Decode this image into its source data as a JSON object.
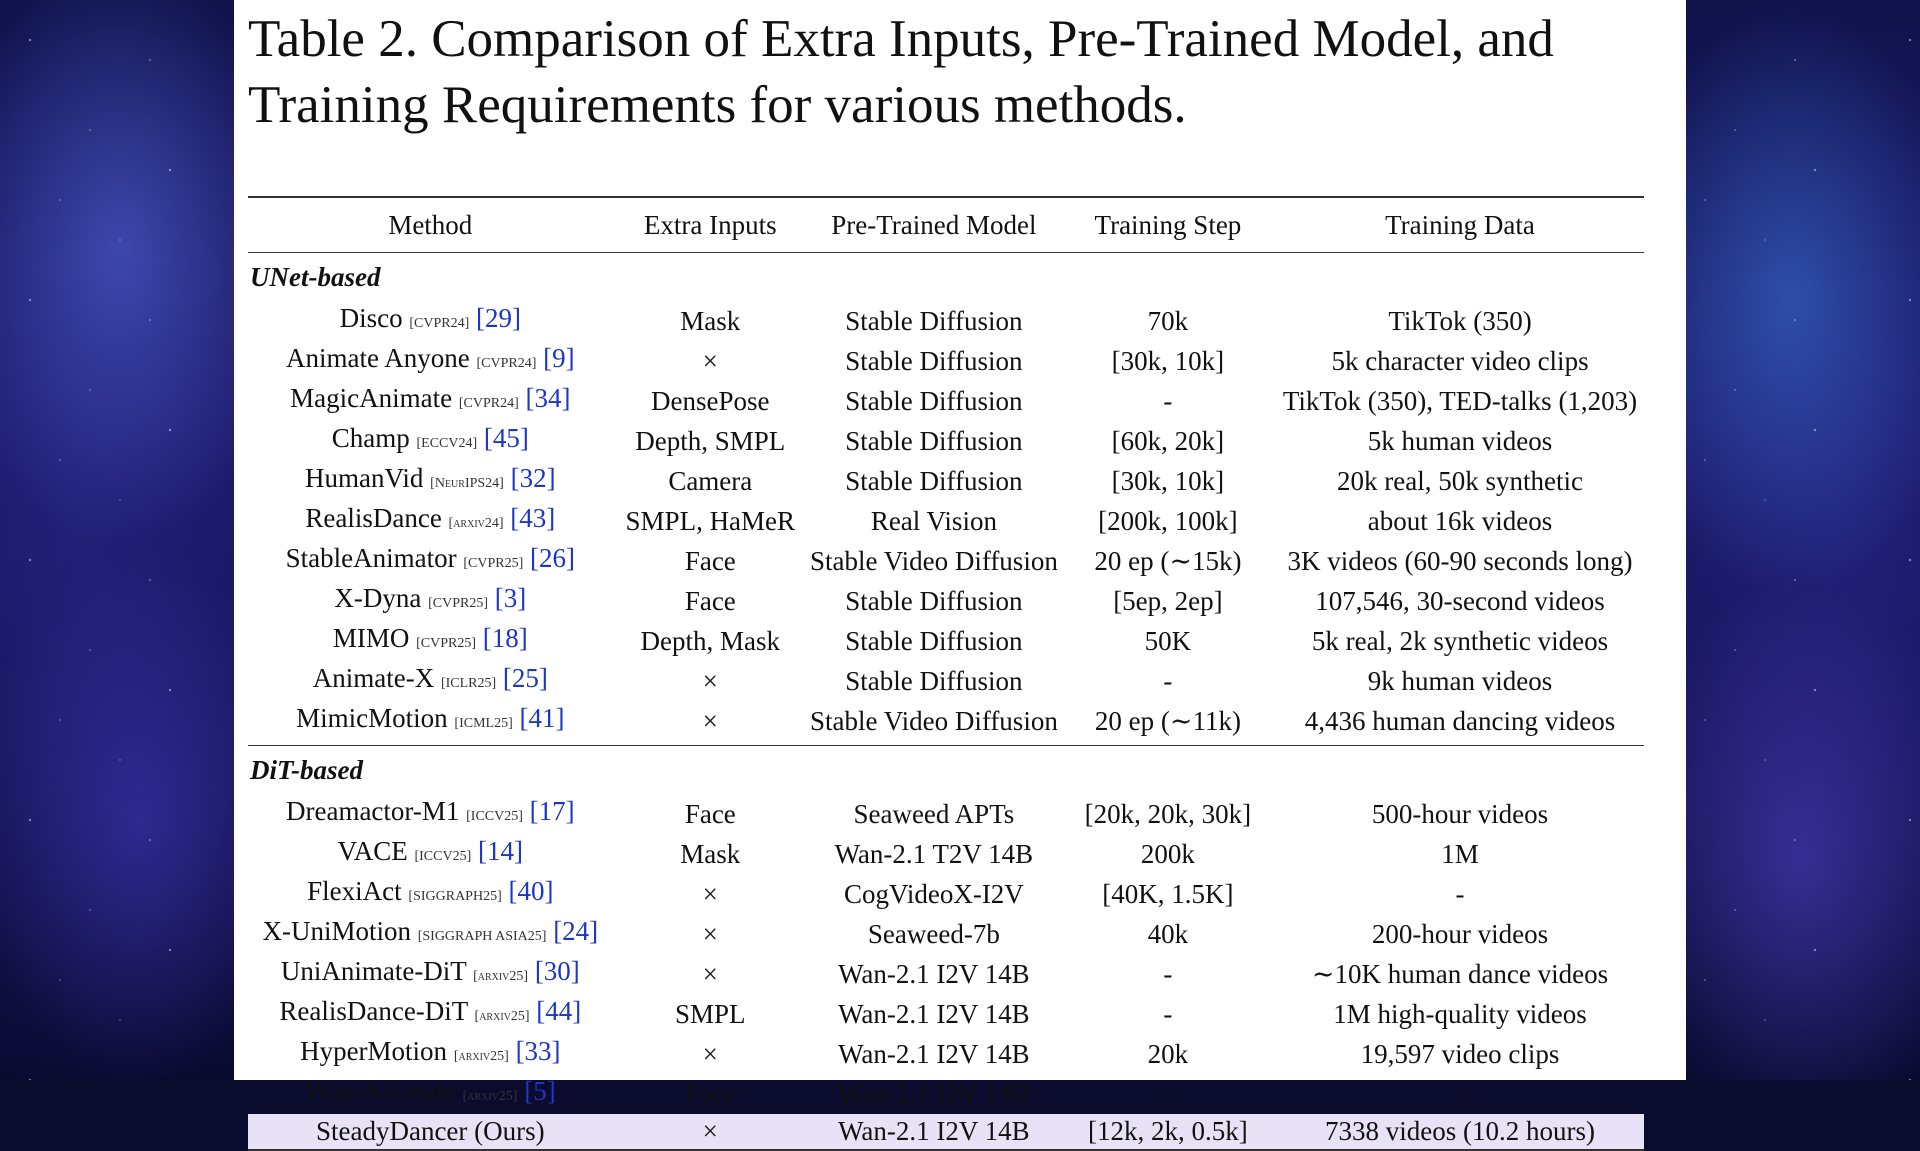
{
  "caption": {
    "line1": "Table 2.  Comparison of Extra Inputs, Pre-Trained Model, and",
    "line2": "Training Requirements for various methods."
  },
  "columns": [
    "Method",
    "Extra Inputs",
    "Pre-Trained Model",
    "Training Step",
    "Training Data"
  ],
  "groups": [
    {
      "label": "UNet-based",
      "rows": [
        {
          "name": "Disco",
          "venue": "[CVPR24]",
          "ref": "[29]",
          "inputs": "Mask",
          "model": "Stable Diffusion",
          "step": "70k",
          "data": "TikTok (350)"
        },
        {
          "name": "Animate Anyone",
          "venue": "[CVPR24]",
          "ref": "[9]",
          "inputs": "×",
          "model": "Stable Diffusion",
          "step": "[30k, 10k]",
          "data": "5k character video clips"
        },
        {
          "name": "MagicAnimate",
          "venue": "[CVPR24]",
          "ref": "[34]",
          "inputs": "DensePose",
          "model": "Stable Diffusion",
          "step": "-",
          "data": "TikTok (350), TED-talks (1,203)"
        },
        {
          "name": "Champ",
          "venue": "[ECCV24]",
          "ref": "[45]",
          "inputs": "Depth, SMPL",
          "model": "Stable Diffusion",
          "step": "[60k, 20k]",
          "data": "5k human videos"
        },
        {
          "name": "HumanVid",
          "venue": "[NeurIPS24]",
          "ref": "[32]",
          "inputs": "Camera",
          "model": "Stable Diffusion",
          "step": "[30k, 10k]",
          "data": "20k real, 50k synthetic"
        },
        {
          "name": "RealisDance",
          "venue": "[arxiv24]",
          "ref": "[43]",
          "inputs": "SMPL, HaMeR",
          "model": "Real Vision",
          "step": "[200k, 100k]",
          "data": "about 16k videos"
        },
        {
          "name": "StableAnimator",
          "venue": "[CVPR25]",
          "ref": "[26]",
          "inputs": "Face",
          "model": "Stable Video Diffusion",
          "step": "20 ep (∼15k)",
          "data": "3K videos (60-90 seconds long)"
        },
        {
          "name": "X-Dyna",
          "venue": "[CVPR25]",
          "ref": "[3]",
          "inputs": "Face",
          "model": "Stable Diffusion",
          "step": "[5ep, 2ep]",
          "data": "107,546, 30-second videos"
        },
        {
          "name": "MIMO",
          "venue": "[CVPR25]",
          "ref": "[18]",
          "inputs": "Depth, Mask",
          "model": "Stable Diffusion",
          "step": "50K",
          "data": "5k real, 2k synthetic videos"
        },
        {
          "name": "Animate-X",
          "venue": "[ICLR25]",
          "ref": "[25]",
          "inputs": "×",
          "model": "Stable Diffusion",
          "step": "-",
          "data": "9k human videos"
        },
        {
          "name": "MimicMotion",
          "venue": "[ICML25]",
          "ref": "[41]",
          "inputs": "×",
          "model": "Stable Video Diffusion",
          "step": "20 ep (∼11k)",
          "data": "4,436 human dancing videos"
        }
      ]
    },
    {
      "label": "DiT-based",
      "rows": [
        {
          "name": "Dreamactor-M1",
          "venue": "[ICCV25]",
          "ref": "[17]",
          "inputs": "Face",
          "model": "Seaweed APTs",
          "step": "[20k, 20k, 30k]",
          "data": "500-hour videos"
        },
        {
          "name": "VACE",
          "venue": "[ICCV25]",
          "ref": "[14]",
          "inputs": "Mask",
          "model": "Wan-2.1 T2V 14B",
          "step": "200k",
          "data": "1M"
        },
        {
          "name": "FlexiAct",
          "venue": "[SIGGRAPH25]",
          "ref": "[40]",
          "inputs": "×",
          "model": "CogVideoX-I2V",
          "step": "[40K, 1.5K]",
          "data": "-"
        },
        {
          "name": "X-UniMotion",
          "venue": "[SIGGRAPH ASIA25]",
          "ref": "[24]",
          "inputs": "×",
          "model": "Seaweed-7b",
          "step": "40k",
          "data": "200-hour videos"
        },
        {
          "name": "UniAnimate-DiT",
          "venue": "[arxiv25]",
          "ref": "[30]",
          "inputs": "×",
          "model": "Wan-2.1 I2V 14B",
          "step": "-",
          "data": "∼10K human dance videos"
        },
        {
          "name": "RealisDance-DiT",
          "venue": "[arxiv25]",
          "ref": "[44]",
          "inputs": "SMPL",
          "model": "Wan-2.1 I2V 14B",
          "step": "-",
          "data": "1M high-quality videos"
        },
        {
          "name": "HyperMotion",
          "venue": "[arxiv25]",
          "ref": "[33]",
          "inputs": "×",
          "model": "Wan-2.1 I2V 14B",
          "step": "20k",
          "data": "19,597 video clips"
        },
        {
          "name": "Wan-Animate",
          "venue": "[arxiv25]",
          "ref": "[5]",
          "inputs": "Face",
          "model": "Wan-2.1 I2V 14B",
          "step": "-",
          "data": "-"
        },
        {
          "name": "SteadyDancer (Ours)",
          "venue": "",
          "ref": "",
          "inputs": "×",
          "model": "Wan-2.1 I2V 14B",
          "step": "[12k, 2k, 0.5k]",
          "data": "7338 videos (10.2 hours)",
          "highlight": true
        }
      ]
    }
  ]
}
